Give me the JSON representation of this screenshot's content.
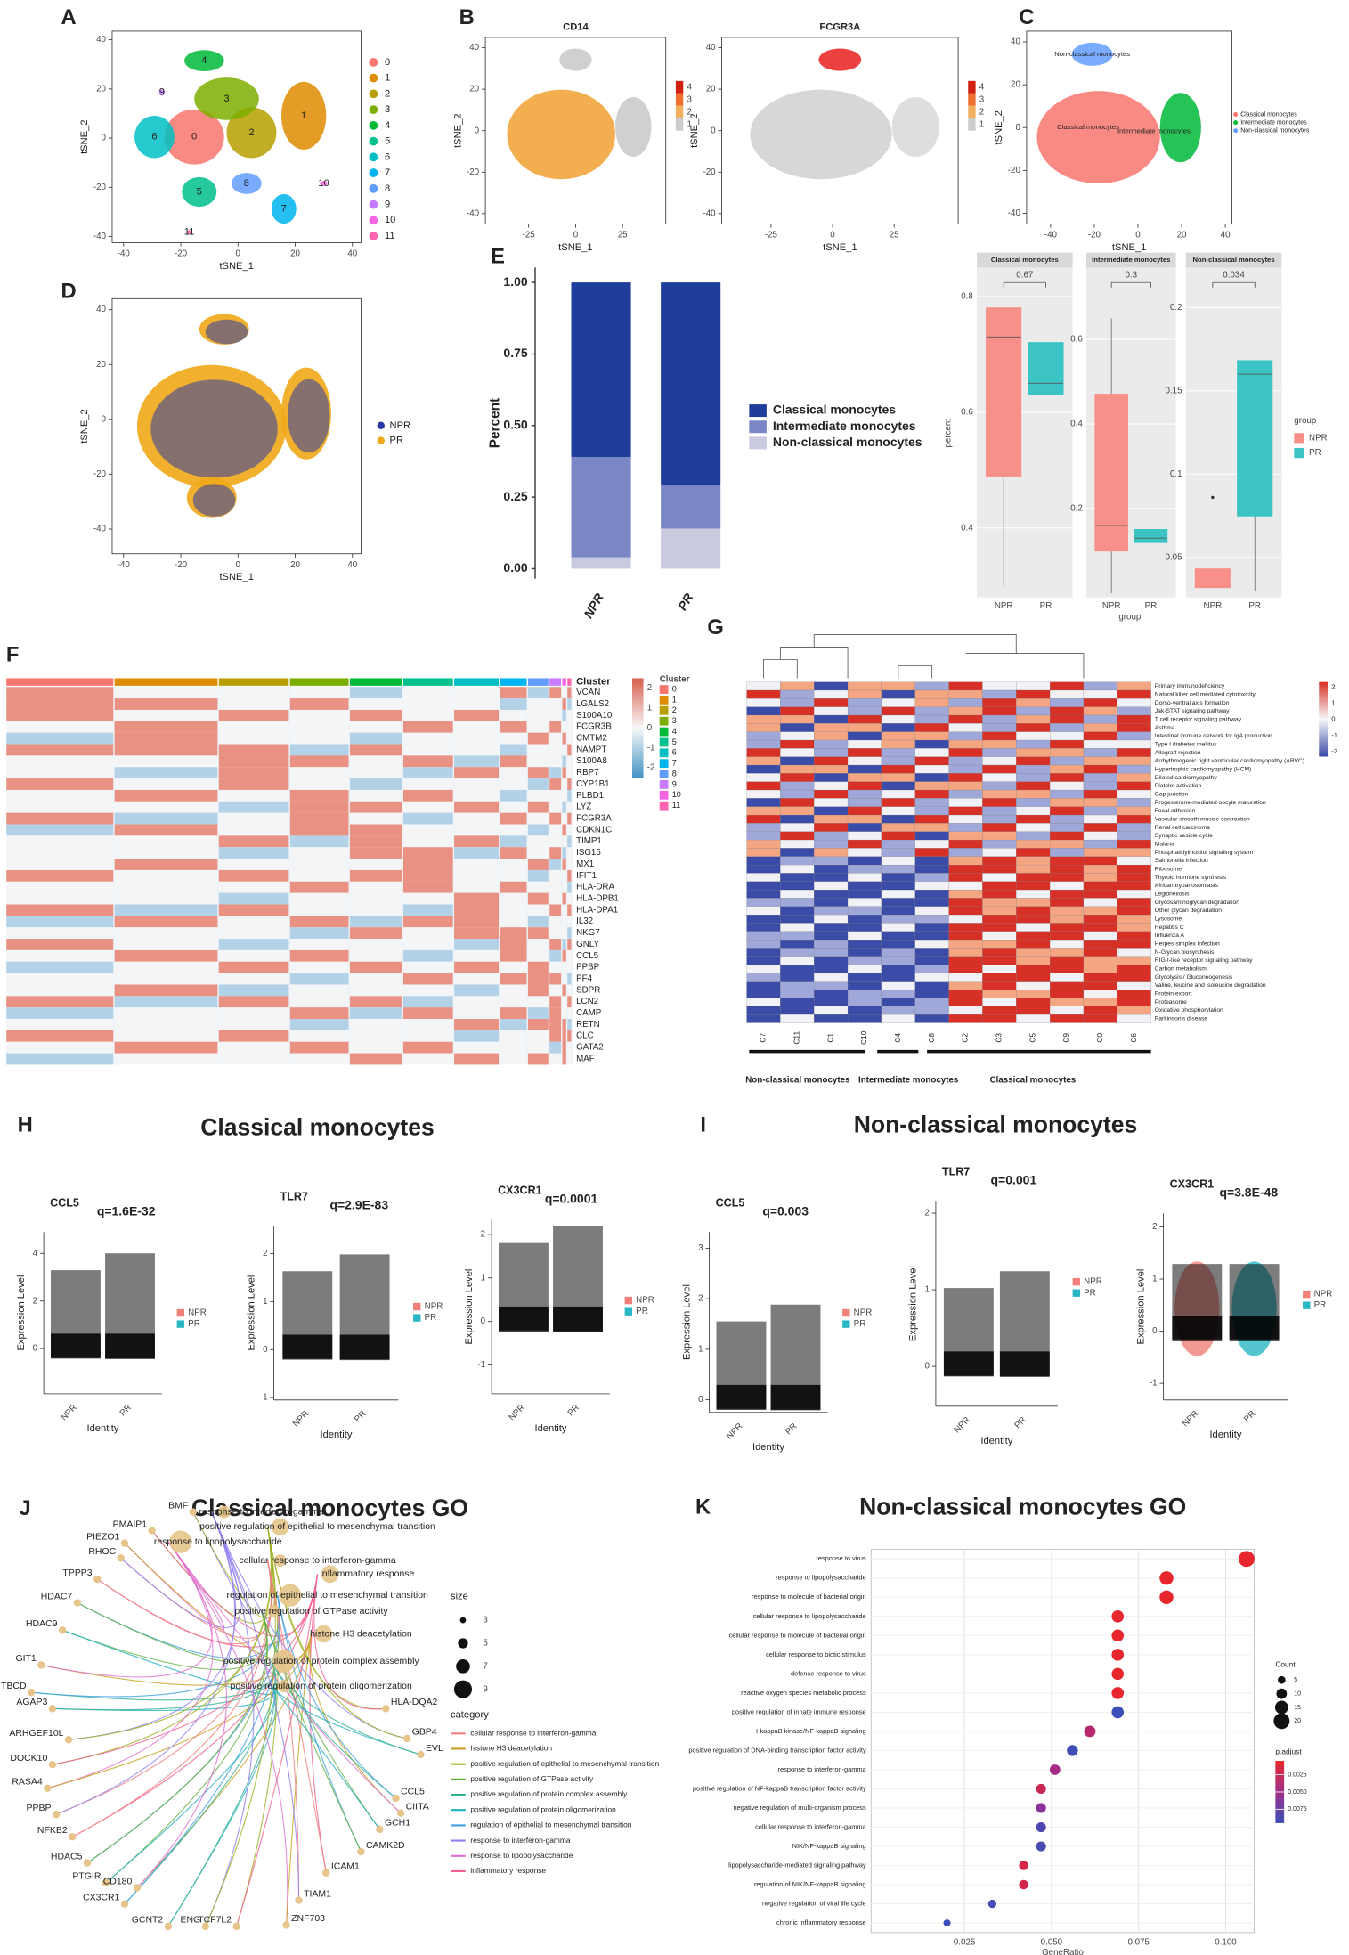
{
  "letters": [
    "A",
    "B",
    "C",
    "D",
    "E",
    "F",
    "G",
    "H",
    "I",
    "J",
    "K"
  ],
  "tsne": [
    {
      "xlabel": "tSNE_1",
      "ylabel": "tSNE_2",
      "xlim": [
        -44,
        43
      ],
      "ylim": [
        -42.5,
        43.5
      ],
      "xticks": [
        -40,
        -20,
        0,
        20,
        40
      ],
      "yticks": [
        -40,
        -20,
        0,
        20,
        40
      ],
      "legend": [
        "0",
        "1",
        "2",
        "3",
        "4",
        "5",
        "6",
        "7",
        "8",
        "9",
        "10",
        "11"
      ],
      "colors": [
        "#F8766D",
        "#DE8C00",
        "#B79F00",
        "#7CAE00",
        "#00BA38",
        "#00C08B",
        "#00BFC4",
        "#00B4F0",
        "#619CFF",
        "#C77CFF",
        "#F564E3",
        "#FF64B0"
      ]
    },
    {
      "title": "CD14",
      "xlabel": "tSNE_1",
      "ylabel": "tSNE_2",
      "xlim": [
        -48,
        48
      ],
      "ylim": [
        -45,
        45
      ],
      "xticks": [
        -25,
        0,
        25
      ],
      "yticks": [
        -40,
        -20,
        0,
        20,
        40
      ],
      "scale": [
        1,
        2,
        3,
        4
      ]
    },
    {
      "title": "FCGR3A",
      "xlabel": "tSNE_1",
      "ylabel": "tSNE_2",
      "xlim": [
        -45,
        51
      ],
      "ylim": [
        -45,
        45
      ],
      "xticks": [
        -25,
        0,
        25
      ],
      "yticks": [
        -40,
        -20,
        0,
        20,
        40
      ],
      "scale": [
        1,
        2,
        3,
        4
      ]
    },
    {
      "xlabel": "tSNE_1",
      "ylabel": "tSNE_2",
      "xlim": [
        -51,
        43
      ],
      "ylim": [
        -45,
        45
      ],
      "xticks": [
        -40,
        -20,
        0,
        20,
        40
      ],
      "yticks": [
        -40,
        -20,
        0,
        20,
        40
      ],
      "legend": [
        "Classical monocytes",
        "Intermediate monocytes",
        "Non-classical monocytes"
      ],
      "colors": [
        "#F8766D",
        "#00BA38",
        "#619CFF"
      ],
      "annotations": [
        "Non-classical monocytes",
        "Classical monocytes",
        "Intermediate monocytes"
      ]
    },
    {
      "xlabel": "tSNE_1",
      "ylabel": "tSNE_2",
      "xlim": [
        -44,
        43
      ],
      "ylim": [
        -49,
        44
      ],
      "xticks": [
        -40,
        -20,
        0,
        20,
        40
      ],
      "yticks": [
        -40,
        -20,
        0,
        20,
        40
      ],
      "legend": [
        "NPR",
        "PR"
      ],
      "colors": [
        "#2b3aa3",
        "#f0a818"
      ]
    }
  ],
  "chart_data": [
    {
      "type": "stacked_bar",
      "ylabel": "Percent",
      "categories": [
        "NPR",
        "PR"
      ],
      "ylim": [
        -0.035,
        1.052
      ],
      "yticks": [
        {
          "value": 0,
          "label": "0.00"
        },
        {
          "value": 0.25,
          "label": "0.25"
        },
        {
          "value": 0.5,
          "label": "0.50"
        },
        {
          "value": 0.75,
          "label": "0.75"
        },
        {
          "value": 1,
          "label": "1.00"
        }
      ],
      "series": [
        {
          "name": "Classical monocytes",
          "color": "#1f3e9c",
          "values": [
            0.61,
            0.71
          ]
        },
        {
          "name": "Intermediate monocytes",
          "color": "#7b86c4",
          "values": [
            0.35,
            0.15
          ]
        },
        {
          "name": "Non-classical monocytes",
          "color": "#c9cadf",
          "values": [
            0.04,
            0.14
          ]
        }
      ]
    },
    {
      "type": "box",
      "ylabel": "percent",
      "xlabel": "group",
      "legend_title": "group",
      "groups": [
        "NPR",
        "PR"
      ],
      "colors": [
        "#f8908a",
        "#3cc4c4"
      ],
      "facets": [
        {
          "title": "Classical monocytes",
          "p": "0.67",
          "ylim": [
            0.28,
            0.85
          ],
          "yticks": [
            0.4,
            0.6,
            0.8
          ],
          "stats": [
            [
              0.3,
              0.49,
              0.73,
              0.78,
              0.78
            ],
            [
              0.63,
              0.63,
              0.65,
              0.72,
              0.72
            ]
          ]
        },
        {
          "title": "Intermediate monocytes",
          "p": "0.3",
          "ylim": [
            -0.01,
            0.77
          ],
          "yticks": [
            0.2,
            0.4,
            0.6
          ],
          "stats": [
            [
              0.0,
              0.1,
              0.16,
              0.47,
              0.65
            ],
            [
              0.12,
              0.12,
              0.13,
              0.15,
              0.15
            ]
          ]
        },
        {
          "title": "Non-classical monocytes",
          "p": "0.034",
          "ylim": [
            0.026,
            0.224
          ],
          "yticks": [
            0.05,
            0.1,
            0.15,
            0.2
          ],
          "stats": [
            [
              0.032,
              0.032,
              0.04,
              0.043,
              0.043
            ],
            [
              0.03,
              0.075,
              0.16,
              0.168,
              0.168
            ]
          ],
          "outliers": [
            0.086
          ]
        }
      ]
    },
    {
      "type": "dot",
      "title": "Non-classical monocytes GO",
      "xlabel": "GeneRatio",
      "xlim": [
        -0.0018,
        0.1082
      ],
      "xticks": [
        {
          "value": 0.025,
          "label": "0.025"
        },
        {
          "value": 0.05,
          "label": "0.050"
        },
        {
          "value": 0.075,
          "label": "0.075"
        },
        {
          "value": 0.1,
          "label": "0.100"
        }
      ],
      "categories": [
        "response to virus",
        "response to lipopolysaccharide",
        "response to molecule of bacterial origin",
        "cellular response to lipopolysaccharide",
        "cellular response to molecule of bacterial origin",
        "cellular response to biotic stimulus",
        "defense response to virus",
        "reactive oxygen species metabolic process",
        "positive regulation of innate immune response",
        "I-kappaB kinase/NF-kappaB signaling",
        "positive regulation of DNA-binding transcription factor activity",
        "response to interferon-gamma",
        "positive regulation of NF-kappaB transcription factor activity",
        "negative regulation of multi-organism process",
        "cellular response to interferon-gamma",
        "NIK/NF-kappaB signaling",
        "lipopolysaccharide-mediated signaling pathway",
        "regulation of NIK/NF-kappaB signaling",
        "negative regulation of viral life cycle",
        "chronic inflammatory response"
      ],
      "values": [
        0.106,
        0.083,
        0.083,
        0.069,
        0.069,
        0.069,
        0.069,
        0.069,
        0.069,
        0.061,
        0.056,
        0.051,
        0.047,
        0.047,
        0.047,
        0.047,
        0.042,
        0.042,
        0.033,
        0.02
      ],
      "sizes": [
        20,
        16,
        16,
        13,
        13,
        13,
        13,
        13,
        13,
        12,
        11,
        10,
        9,
        9,
        9,
        9,
        8,
        8,
        6,
        4
      ],
      "colors": [
        "#e8262d",
        "#e8262d",
        "#e8262d",
        "#e8262d",
        "#e8262d",
        "#e8262d",
        "#e8262d",
        "#e8262d",
        "#3c4fb8",
        "#b8286f",
        "#3f4eb6",
        "#a52b86",
        "#c92757",
        "#8a3299",
        "#5045b0",
        "#4a4ab3",
        "#d5264a",
        "#d5264a",
        "#4a4ab3",
        "#3c4fb8"
      ],
      "size_title": "Count",
      "size_legend": [
        5,
        10,
        15,
        20
      ],
      "color_title": "p.adjust",
      "color_legend": [
        {
          "value": 0.0025,
          "label": "0.0025"
        },
        {
          "value": 0.005,
          "label": "0.0050"
        },
        {
          "value": 0.0075,
          "label": "0.0075"
        }
      ]
    }
  ],
  "violins": {
    "ylabel": "Expression Level",
    "xlabel": "Identity",
    "groups": [
      "NPR",
      "PR"
    ],
    "titles": [
      "Classical monocytes",
      "Non-classical monocytes"
    ],
    "panels": [
      {
        "gene": "CCL5",
        "q": "q=1.6E-32",
        "ylim": [
          -1.9,
          4.9
        ],
        "yticks": [
          0,
          2,
          4
        ]
      },
      {
        "gene": "TLR7",
        "q": "q=2.9E-83",
        "ylim": [
          -1.05,
          2.58
        ],
        "yticks": [
          -1,
          0,
          1,
          2
        ]
      },
      {
        "gene": "CX3CR1",
        "q": "q=0.0001",
        "ylim": [
          -1.66,
          2.34
        ],
        "yticks": [
          -1,
          0,
          1,
          2
        ]
      },
      {
        "gene": "CCL5",
        "q": "q=0.003",
        "ylim": [
          -0.25,
          3.32
        ],
        "yticks": [
          0,
          1,
          2,
          3
        ]
      },
      {
        "gene": "TLR7",
        "q": "q=0.001",
        "ylim": [
          -0.52,
          2.16
        ],
        "yticks": [
          0,
          1,
          2
        ]
      },
      {
        "gene": "CX3CR1",
        "q": "q=3.8E-48",
        "ylim": [
          -1.32,
          2.26
        ],
        "yticks": [
          -1,
          0,
          1,
          2
        ]
      }
    ]
  },
  "heatmap_f": {
    "legend_title": "Cluster",
    "scale": [
      2,
      1,
      0,
      -1,
      -2
    ],
    "clusters": [
      "0",
      "1",
      "2",
      "3",
      "4",
      "5",
      "6",
      "7",
      "8",
      "9",
      "10",
      "11"
    ],
    "genes": [
      "VCAN",
      "LGALS2",
      "S100A10",
      "FCGR3B",
      "CMTM2",
      "NAMPT",
      "S100A8",
      "RBP7",
      "CYP1B1",
      "PLBD1",
      "LYZ",
      "FCGR3A",
      "CDKN1C",
      "TIMP1",
      "ISG15",
      "MX1",
      "IFIT1",
      "HLA-DRA",
      "HLA-DPB1",
      "HLA-DPA1",
      "IL32",
      "NKG7",
      "GNLY",
      "CCL5",
      "PPBP",
      "PF4",
      "SDPR",
      "LCN2",
      "CAMP",
      "RETN",
      "CLC",
      "GATA2",
      "MAF"
    ]
  },
  "heatmap_g": {
    "scale": [
      2,
      1,
      0,
      -1,
      -2
    ],
    "columns": [
      "C7",
      "C11",
      "C1",
      "C10",
      "C4",
      "C8",
      "C2",
      "C3",
      "C5",
      "C9",
      "C0",
      "C6"
    ],
    "groups": [
      "Non-classical monocytes",
      "Intermediate monocytes",
      "Classical monocytes"
    ],
    "pathways": [
      "Primary immunodeficiency",
      "Natural killer cell mediated cytotoxicity",
      "Dorso-ventral axis formation",
      "Jak-STAT signaling pathway",
      "T cell receptor signaling pathway",
      "Asthma",
      "Intestinal immune network for IgA production",
      "Type I diabetes mellitus",
      "Allograft rejection",
      "Arrhythmogenic right ventricular cardiomyopathy (ARVC)",
      "Hypertrophic cardiomyopathy (HCM)",
      "Dilated cardiomyopathy",
      "Platelet activation",
      "Gap junction",
      "Progesterone-mediated oocyte maturation",
      "Focal adhesion",
      "Vascular smooth muscle contraction",
      "Renal cell carcinoma",
      "Synaptic vesicle cycle",
      "Malaria",
      "Phosphatidylinositol signaling system",
      "Salmonella infection",
      "Ribosome",
      "Thyroid hormone synthesis",
      "African trypanosomiasis",
      "Legionellosis",
      "Glycosaminoglycan degradation",
      "Other glycan degradation",
      "Lysosome",
      "Hepatitis C",
      "Influenza A",
      "Herpes simplex infection",
      "N-Glycan biosynthesis",
      "RIG-I-like receptor signaling pathway",
      "Carbon metabolism",
      "Glycolysis / Gluconeogenesis",
      "Valine, leucine and isoleucine degradation",
      "Protein export",
      "Proteasome",
      "Oxidative phosphorylation",
      "Parkinson's disease"
    ]
  },
  "network": {
    "title": "Classical monocytes GO",
    "size_title": "size",
    "size_legend": [
      3,
      5,
      7,
      9
    ],
    "category_title": "category",
    "categories": [
      "cellular response to interferon-gamma",
      "histone H3 deacetylation",
      "positive regulation of epithelial to mesenchymal transition",
      "positive regulation of GTPase activity",
      "positive regulation of protein complex assembly",
      "positive regulation of protein oligomerization",
      "regulation of epithelial to mesenchymal transition",
      "response to interferon-gamma",
      "response to lipopolysaccharide",
      "inflammatory response"
    ],
    "category_colors": [
      "#f08080",
      "#c8a020",
      "#a0b020",
      "#60b040",
      "#30b090",
      "#20b0c0",
      "#40a0e0",
      "#9080f0",
      "#e070d0",
      "#f06090"
    ],
    "terms": [
      "response to interferon-gamma",
      "positive regulation of epithelial to mesenchymal transition",
      "response to lipopolysaccharide",
      "cellular response to interferon-gamma",
      "inflammatory response",
      "regulation of epithelial to mesenchymal transition",
      "positive regulation of GTPase activity",
      "histone H3 deacetylation",
      "positive regulation of protein complex assembly",
      "positive regulation of protein oligomerization"
    ],
    "genes": [
      "BMF",
      "PMAIP1",
      "PIEZO1",
      "RHOC",
      "TPPP3",
      "HDAC7",
      "HDAC9",
      "GIT1",
      "TBCD",
      "AGAP3",
      "ARHGEF10L",
      "DOCK10",
      "RASA4",
      "PPBP",
      "NFKB2",
      "HDAC5",
      "PTGIR",
      "CD180",
      "CX3CR1",
      "GCNT2",
      "ENG",
      "TCF7L2",
      "ZNF703",
      "TIAM1",
      "ICAM1",
      "CAMK2D",
      "GCH1",
      "CIITA",
      "CCL5",
      "EVL",
      "GBP4",
      "HLA-DQA2"
    ]
  }
}
